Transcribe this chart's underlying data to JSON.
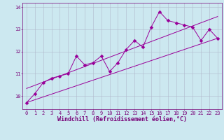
{
  "title": "",
  "xlabel": "Windchill (Refroidissement éolien,°C)",
  "bg_color": "#cce8f0",
  "line_color": "#990099",
  "marker_color": "#990099",
  "grid_color": "#b0b8cc",
  "x_data": [
    0,
    1,
    2,
    3,
    4,
    5,
    6,
    7,
    8,
    9,
    10,
    11,
    12,
    13,
    14,
    15,
    16,
    17,
    18,
    19,
    20,
    21,
    22,
    23
  ],
  "y_data": [
    9.7,
    10.1,
    10.6,
    10.8,
    10.9,
    11.0,
    11.8,
    11.4,
    11.5,
    11.8,
    11.1,
    11.5,
    12.1,
    12.5,
    12.2,
    13.1,
    13.8,
    13.4,
    13.3,
    13.2,
    13.1,
    12.5,
    13.0,
    12.6
  ],
  "ylim": [
    9.4,
    14.2
  ],
  "xlim": [
    -0.5,
    23.5
  ],
  "yticks": [
    10,
    11,
    12,
    13,
    14
  ],
  "xticks": [
    0,
    1,
    2,
    3,
    4,
    5,
    6,
    7,
    8,
    9,
    10,
    11,
    12,
    13,
    14,
    15,
    16,
    17,
    18,
    19,
    20,
    21,
    22,
    23
  ],
  "font_color": "#770077",
  "tick_font_size": 5.0,
  "xlabel_font_size": 6.0,
  "marker_size": 8,
  "line_width": 0.7
}
